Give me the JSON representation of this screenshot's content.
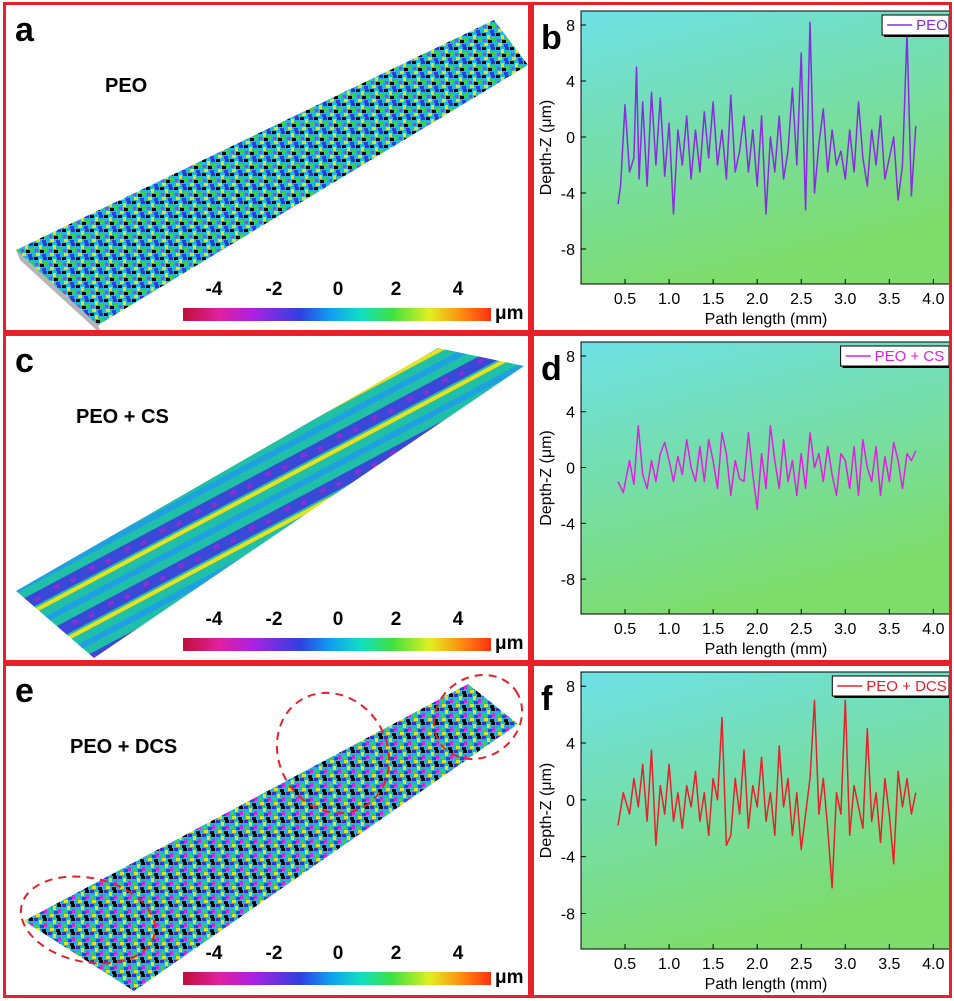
{
  "panels": {
    "a": {
      "label": "a",
      "sample": "PEO",
      "sample_color": "#1e6fe0"
    },
    "c": {
      "label": "c",
      "sample": "PEO + CS",
      "sample_color": "#e020e0"
    },
    "e": {
      "label": "e",
      "sample": "PEO + DCS",
      "sample_color": "#e8202a"
    },
    "b": {
      "label": "b"
    },
    "d": {
      "label": "d"
    },
    "f": {
      "label": "f"
    }
  },
  "colorbar": {
    "ticks": [
      "-4",
      "-2",
      "0",
      "2",
      "4"
    ],
    "unit": "μm"
  },
  "colors": {
    "frame": "#e8202a",
    "plot_bg_top": "#6ee0e6",
    "plot_bg_bottom": "#7edc6a"
  },
  "chart_data": [
    {
      "type": "line",
      "xlabel": "Path length (mm)",
      "ylabel": "Depth-Z (μm)",
      "xlim": [
        0,
        4.2
      ],
      "ylim": [
        -10.5,
        9
      ],
      "xticks": [
        "0.5",
        "1.0",
        "1.5",
        "2.0",
        "2.5",
        "3.0",
        "3.5",
        "4.0"
      ],
      "yticks": [
        "8",
        "4",
        "0",
        "-4",
        "-8"
      ],
      "series": [
        {
          "name": "PEO",
          "color": "#8a2be2",
          "x": [
            0.42,
            0.45,
            0.5,
            0.55,
            0.6,
            0.63,
            0.66,
            0.7,
            0.75,
            0.8,
            0.85,
            0.9,
            0.95,
            1.0,
            1.05,
            1.1,
            1.15,
            1.2,
            1.25,
            1.3,
            1.35,
            1.4,
            1.45,
            1.5,
            1.55,
            1.6,
            1.65,
            1.7,
            1.75,
            1.8,
            1.85,
            1.9,
            1.95,
            2.0,
            2.05,
            2.1,
            2.15,
            2.2,
            2.25,
            2.3,
            2.35,
            2.4,
            2.45,
            2.5,
            2.55,
            2.6,
            2.65,
            2.7,
            2.75,
            2.8,
            2.85,
            2.9,
            2.95,
            3.0,
            3.05,
            3.1,
            3.15,
            3.2,
            3.25,
            3.3,
            3.35,
            3.4,
            3.45,
            3.5,
            3.55,
            3.6,
            3.65,
            3.7,
            3.75,
            3.8
          ],
          "y": [
            -4.8,
            -3.5,
            2.3,
            -2.5,
            -1.5,
            5.0,
            -3.0,
            2.5,
            -3.5,
            3.2,
            -2.0,
            2.8,
            -2.8,
            1.0,
            -5.5,
            0.5,
            -2.0,
            1.5,
            -3.0,
            0.5,
            -2.5,
            1.8,
            -1.5,
            2.5,
            -2.0,
            0.5,
            -3.0,
            3.0,
            -2.5,
            -1.0,
            1.5,
            -2.5,
            0.5,
            -3.5,
            1.5,
            -5.5,
            0.0,
            -2.5,
            1.5,
            -3.0,
            -1.0,
            3.5,
            -2.0,
            6.0,
            -5.2,
            8.2,
            -4.0,
            -0.5,
            2.0,
            -2.5,
            0.5,
            -2.0,
            -1.0,
            -3.0,
            0.5,
            -2.5,
            2.5,
            -1.5,
            -3.5,
            0.5,
            -2.0,
            1.5,
            -3.0,
            -1.5,
            0.0,
            -4.5,
            -2.0,
            7.5,
            -4.2,
            0.8
          ]
        }
      ]
    },
    {
      "type": "line",
      "xlabel": "Path length (mm)",
      "ylabel": "Depth-Z (μm)",
      "xlim": [
        0,
        4.2
      ],
      "ylim": [
        -10.5,
        9
      ],
      "xticks": [
        "0.5",
        "1.0",
        "1.5",
        "2.0",
        "2.5",
        "3.0",
        "3.5",
        "4.0"
      ],
      "yticks": [
        "8",
        "4",
        "0",
        "-4",
        "-8"
      ],
      "series": [
        {
          "name": "PEO + CS",
          "color": "#e020e0",
          "x": [
            0.42,
            0.48,
            0.55,
            0.6,
            0.65,
            0.7,
            0.75,
            0.8,
            0.85,
            0.9,
            0.95,
            1.0,
            1.05,
            1.1,
            1.15,
            1.2,
            1.25,
            1.3,
            1.35,
            1.4,
            1.45,
            1.5,
            1.55,
            1.6,
            1.65,
            1.7,
            1.75,
            1.8,
            1.85,
            1.9,
            1.95,
            2.0,
            2.05,
            2.1,
            2.15,
            2.2,
            2.25,
            2.3,
            2.35,
            2.4,
            2.45,
            2.5,
            2.55,
            2.6,
            2.65,
            2.7,
            2.75,
            2.8,
            2.85,
            2.9,
            2.95,
            3.0,
            3.05,
            3.1,
            3.15,
            3.2,
            3.25,
            3.3,
            3.35,
            3.4,
            3.45,
            3.5,
            3.55,
            3.6,
            3.65,
            3.7,
            3.75,
            3.8
          ],
          "y": [
            -1.0,
            -1.8,
            0.5,
            -1.2,
            3.0,
            -0.5,
            -1.5,
            0.5,
            -1.0,
            1.0,
            1.8,
            0.5,
            -1.0,
            0.8,
            -0.5,
            2.0,
            0.0,
            -1.0,
            1.5,
            -1.0,
            2.0,
            0.5,
            -1.5,
            2.5,
            1.0,
            -2.0,
            0.5,
            -0.8,
            -1.0,
            2.5,
            -0.5,
            -3.0,
            1.0,
            -1.5,
            3.0,
            0.5,
            -1.5,
            2.0,
            -1.0,
            0.5,
            -2.0,
            1.0,
            -1.5,
            2.5,
            0.0,
            1.0,
            -1.0,
            1.5,
            -0.5,
            -2.0,
            1.0,
            0.5,
            -1.5,
            1.5,
            -2.0,
            2.0,
            0.0,
            -1.0,
            1.5,
            -2.0,
            0.8,
            -1.0,
            1.8,
            0.5,
            -1.5,
            1.0,
            0.5,
            1.2
          ]
        }
      ]
    },
    {
      "type": "line",
      "xlabel": "Path length (mm)",
      "ylabel": "Depth-Z (μm)",
      "xlim": [
        0,
        4.2
      ],
      "ylim": [
        -10.5,
        9
      ],
      "xticks": [
        "0.5",
        "1.0",
        "1.5",
        "2.0",
        "2.5",
        "3.0",
        "3.5",
        "4.0"
      ],
      "yticks": [
        "8",
        "4",
        "0",
        "-4",
        "-8"
      ],
      "series": [
        {
          "name": "PEO + DCS",
          "color": "#e8202a",
          "x": [
            0.42,
            0.48,
            0.55,
            0.6,
            0.65,
            0.7,
            0.75,
            0.8,
            0.85,
            0.9,
            0.95,
            1.0,
            1.05,
            1.1,
            1.15,
            1.2,
            1.25,
            1.3,
            1.35,
            1.4,
            1.45,
            1.5,
            1.55,
            1.6,
            1.65,
            1.7,
            1.75,
            1.8,
            1.85,
            1.9,
            1.95,
            2.0,
            2.05,
            2.1,
            2.15,
            2.2,
            2.25,
            2.3,
            2.35,
            2.4,
            2.45,
            2.5,
            2.55,
            2.6,
            2.65,
            2.7,
            2.75,
            2.8,
            2.85,
            2.9,
            2.95,
            3.0,
            3.05,
            3.1,
            3.15,
            3.2,
            3.25,
            3.3,
            3.35,
            3.4,
            3.45,
            3.5,
            3.55,
            3.6,
            3.65,
            3.7,
            3.75,
            3.8
          ],
          "y": [
            -1.8,
            0.5,
            -1.0,
            1.5,
            -0.5,
            2.5,
            -1.5,
            3.5,
            -3.2,
            1.0,
            -1.0,
            2.5,
            -1.5,
            0.5,
            -2.0,
            1.0,
            -0.5,
            2.0,
            -1.5,
            0.5,
            -2.5,
            1.5,
            0.0,
            5.8,
            -3.2,
            -2.5,
            1.5,
            -1.0,
            3.5,
            -2.0,
            1.0,
            -0.5,
            3.0,
            -1.5,
            0.5,
            -2.5,
            3.8,
            -0.5,
            1.5,
            -2.5,
            0.5,
            -3.5,
            -1.0,
            1.5,
            7.0,
            -1.0,
            1.5,
            -2.0,
            -6.2,
            0.5,
            -1.0,
            7.0,
            -2.5,
            1.0,
            -0.5,
            -2.0,
            5.0,
            -1.5,
            0.5,
            -3.0,
            1.5,
            -1.0,
            -4.5,
            2.0,
            -0.5,
            1.5,
            -1.0,
            0.5
          ]
        }
      ]
    }
  ]
}
